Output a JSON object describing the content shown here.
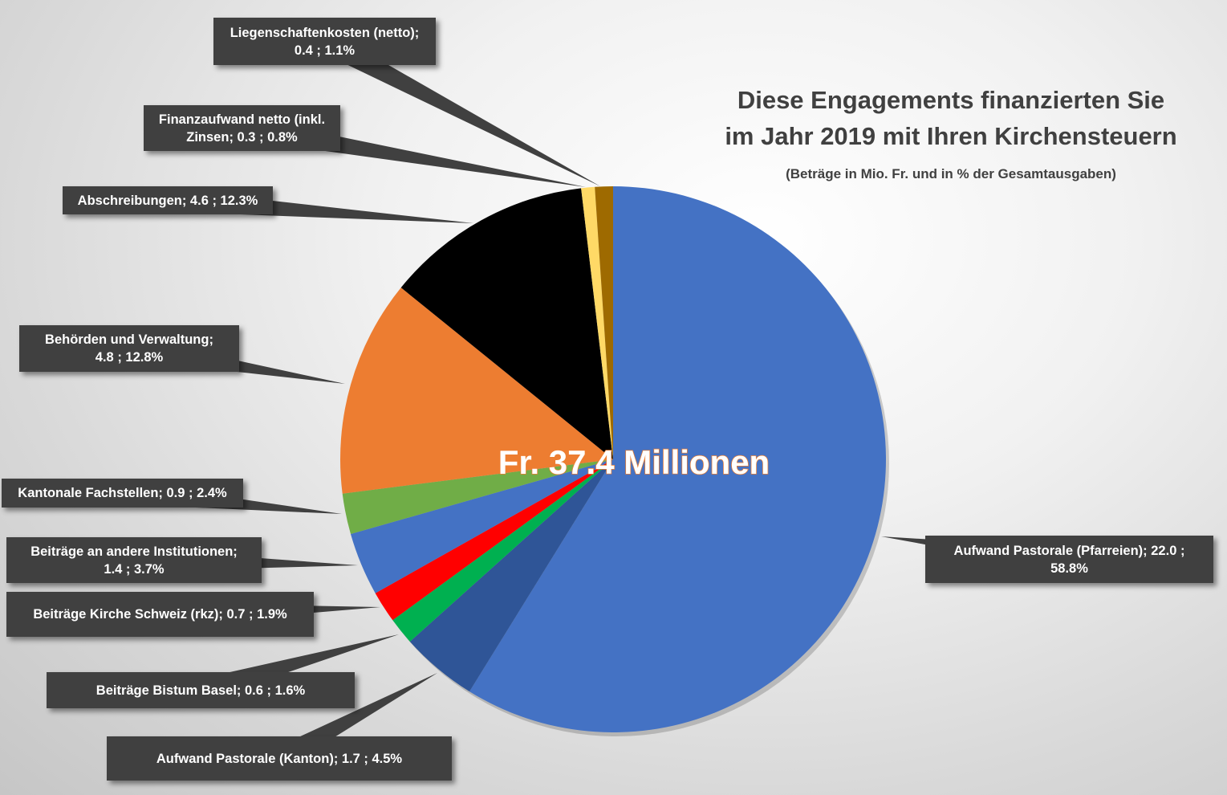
{
  "chart_data": {
    "type": "pie",
    "title_lines": [
      "Diese Engagements finanzierten Sie",
      "im Jahr 2019 mit Ihren Kirchensteuern"
    ],
    "subtitle": "(Beträge in Mio. Fr. und in % der Gesamtausgaben)",
    "center_label": "Fr. 37.4 Millionen",
    "slices": [
      {
        "label": "Aufwand Pastorale (Pfarreien)",
        "value": 22.0,
        "percent": 58.8,
        "color": "#4472c4",
        "label_lines": [
          "Aufwand Pastorale (Pfarreien);  22.0 ;",
          "58.8%"
        ]
      },
      {
        "label": "Aufwand Pastorale (Kanton)",
        "value": 1.7,
        "percent": 4.5,
        "color": "#2f5597",
        "label_lines": [
          "Aufwand Pastorale (Kanton);  1.7 ; 4.5%"
        ]
      },
      {
        "label": "Beiträge Bistum Basel",
        "value": 0.6,
        "percent": 1.6,
        "color": "#00b050",
        "label_lines": [
          "Beiträge Bistum Basel;  0.6 ; 1.6%"
        ]
      },
      {
        "label": "Beiträge Kirche Schweiz (rkz)",
        "value": 0.7,
        "percent": 1.9,
        "color": "#ff0000",
        "label_lines": [
          "Beiträge Kirche Schweiz (rkz);  0.7 ; 1.9%"
        ]
      },
      {
        "label": "Beiträge an andere Institutionen",
        "value": 1.4,
        "percent": 3.7,
        "color": "#4472c4",
        "label_lines": [
          "Beiträge an andere Institutionen;",
          "1.4 ; 3.7%"
        ]
      },
      {
        "label": "Kantonale Fachstellen",
        "value": 0.9,
        "percent": 2.4,
        "color": "#70ad47",
        "label_lines": [
          "Kantonale Fachstellen;  0.9 ; 2.4%"
        ]
      },
      {
        "label": "Behörden und Verwaltung",
        "value": 4.8,
        "percent": 12.8,
        "color": "#ed7d31",
        "label_lines": [
          "Behörden und Verwaltung;",
          "4.8 ; 12.8%"
        ]
      },
      {
        "label": "Abschreibungen",
        "value": 4.6,
        "percent": 12.3,
        "color": "#000000",
        "label_lines": [
          "Abschreibungen;  4.6 ; 12.3%"
        ]
      },
      {
        "label": "Finanzaufwand netto (inkl. Zinsen)",
        "value": 0.3,
        "percent": 0.8,
        "color": "#ffd966",
        "label_lines": [
          "Finanzaufwand netto (inkl.",
          "Zinsen;  0.3 ; 0.8%"
        ]
      },
      {
        "label": "Liegenschaftenkosten (netto)",
        "value": 0.4,
        "percent": 1.1,
        "color": "#9e6a00",
        "label_lines": [
          "Liegenschaftenkosten (netto);",
          "0.4 ; 1.1%"
        ]
      }
    ]
  }
}
